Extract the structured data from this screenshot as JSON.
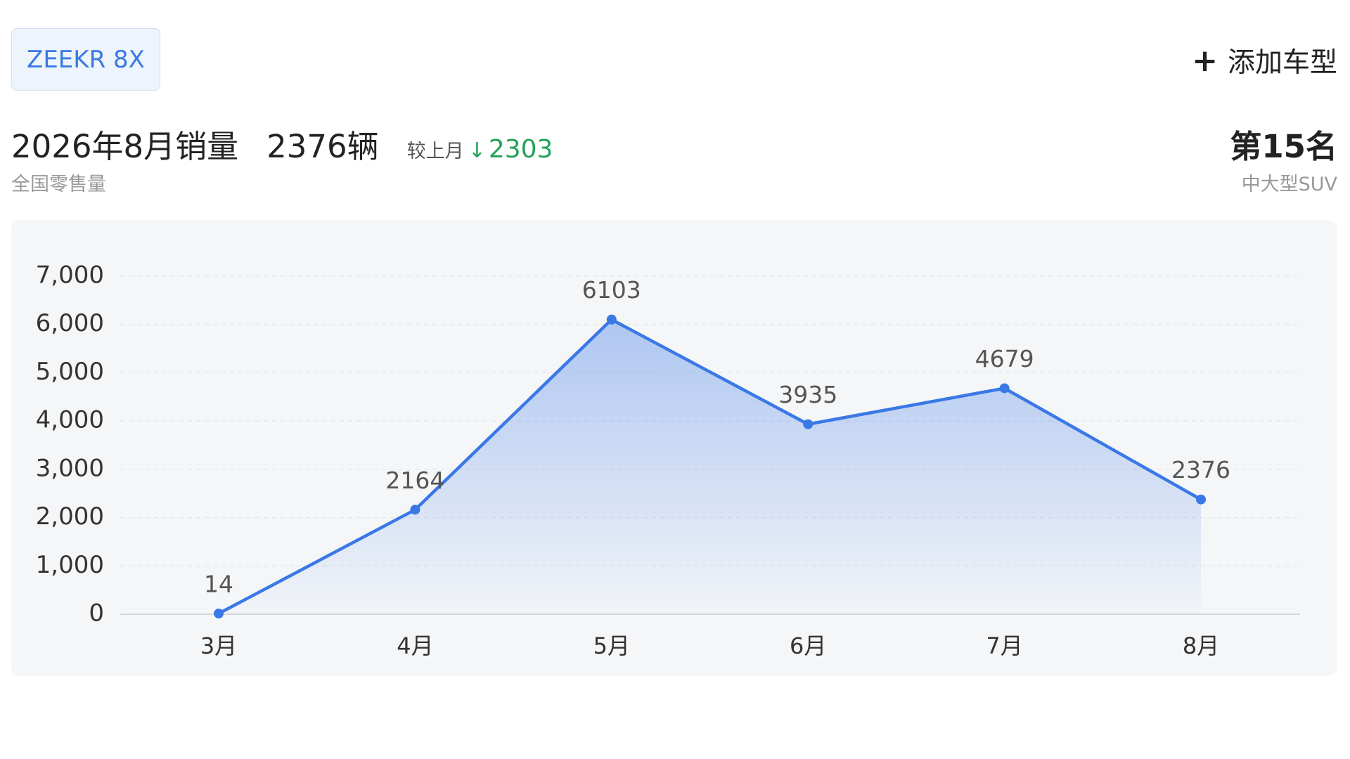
{
  "tab": "ZEEKR 8X",
  "add_button": "添加车型",
  "header": {
    "title": "2026年8月销量",
    "total": "2376辆",
    "compare_label": "较上月",
    "compare_value": "2303",
    "subtitle": "全国零售量",
    "rank": "第15名",
    "category": "中大型SUV"
  },
  "chart_data": {
    "type": "line",
    "categories": [
      "3月",
      "4月",
      "5月",
      "6月",
      "7月",
      "8月"
    ],
    "values": [
      14,
      2164,
      6103,
      3935,
      4679,
      2376
    ],
    "color": "#3a78e6",
    "ylim": [
      0,
      7000
    ],
    "yticks": [
      0,
      {
        "value": 1000,
        "label": "1,000"
      },
      {
        "value": 2000,
        "label": "2,000"
      },
      {
        "value": 3000,
        "label": "3,000"
      },
      {
        "value": 4000,
        "label": "4,000"
      },
      {
        "value": 5000,
        "label": "5,000"
      },
      {
        "value": 6000,
        "label": "6,000"
      },
      {
        "value": 7000,
        "label": "7,000"
      }
    ],
    "grid": true
  }
}
